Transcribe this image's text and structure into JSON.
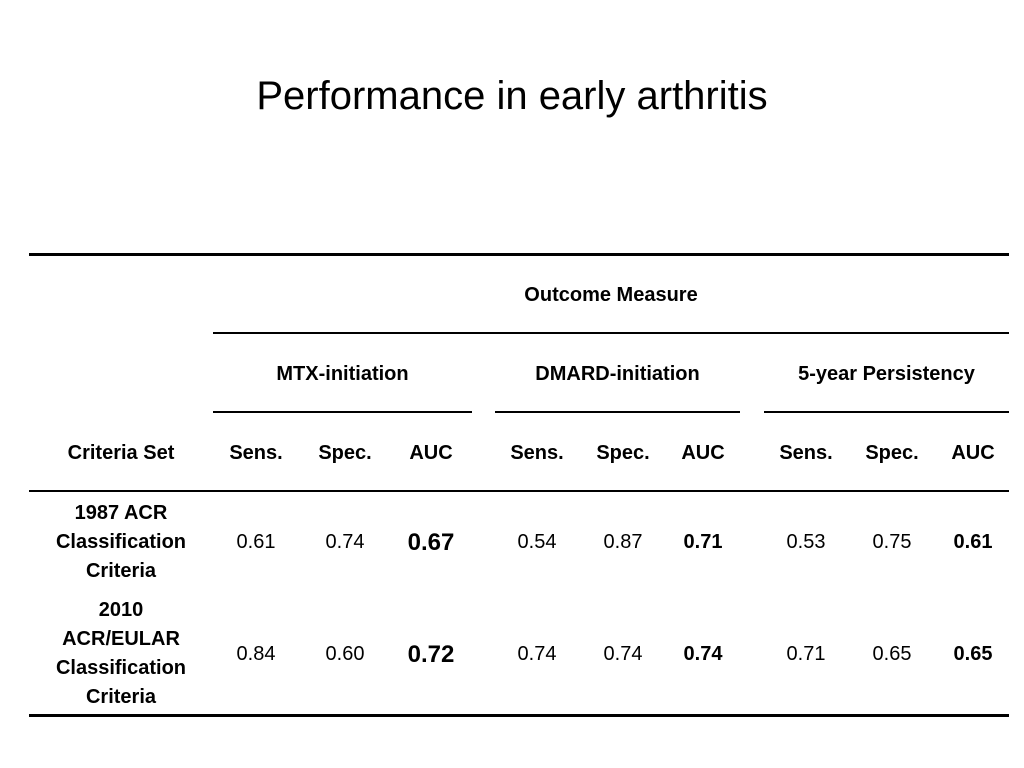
{
  "title": "Performance in early arthritis",
  "table": {
    "outcome_header": "Outcome Measure",
    "groups": [
      "MTX-initiation",
      "DMARD-initiation",
      "5-year Persistency"
    ],
    "criteria_header": "Criteria Set",
    "metrics": [
      "Sens.",
      "Spec.",
      "AUC"
    ],
    "rows": [
      {
        "label_lines": [
          "1987 ACR",
          "Classification",
          "Criteria"
        ],
        "values": [
          "0.61",
          "0.74",
          "0.67",
          "0.54",
          "0.87",
          "0.71",
          "0.53",
          "0.75",
          "0.61"
        ]
      },
      {
        "label_lines": [
          "2010",
          "ACR/EULAR",
          "Classification",
          "Criteria"
        ],
        "values": [
          "0.84",
          "0.60",
          "0.72",
          "0.74",
          "0.74",
          "0.74",
          "0.71",
          "0.65",
          "0.65"
        ]
      }
    ]
  }
}
